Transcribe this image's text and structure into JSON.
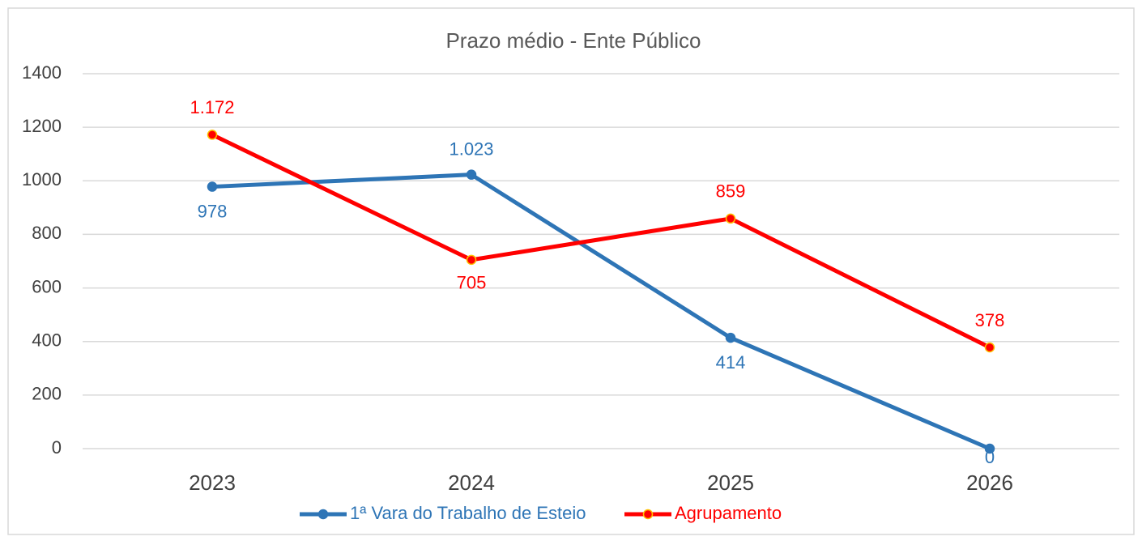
{
  "chart_data": {
    "type": "line",
    "title": "Prazo médio - Ente Público",
    "categories": [
      "2023",
      "2024",
      "2025",
      "2026"
    ],
    "series": [
      {
        "name": "1ª Vara do Trabalho de Esteio",
        "color": "#2e75b6",
        "values": [
          978,
          1023,
          414,
          0
        ],
        "value_labels": [
          "978",
          "1.023",
          "414",
          "0"
        ]
      },
      {
        "name": "Agrupamento",
        "color": "#ff0000",
        "values": [
          1172,
          705,
          859,
          378
        ],
        "value_labels": [
          "1.172",
          "705",
          "859",
          "378"
        ]
      }
    ],
    "ylim": [
      0,
      1400
    ],
    "yticks": [
      0,
      200,
      400,
      600,
      800,
      1000,
      1200,
      1400
    ],
    "grid": true,
    "legend": "bottom"
  }
}
